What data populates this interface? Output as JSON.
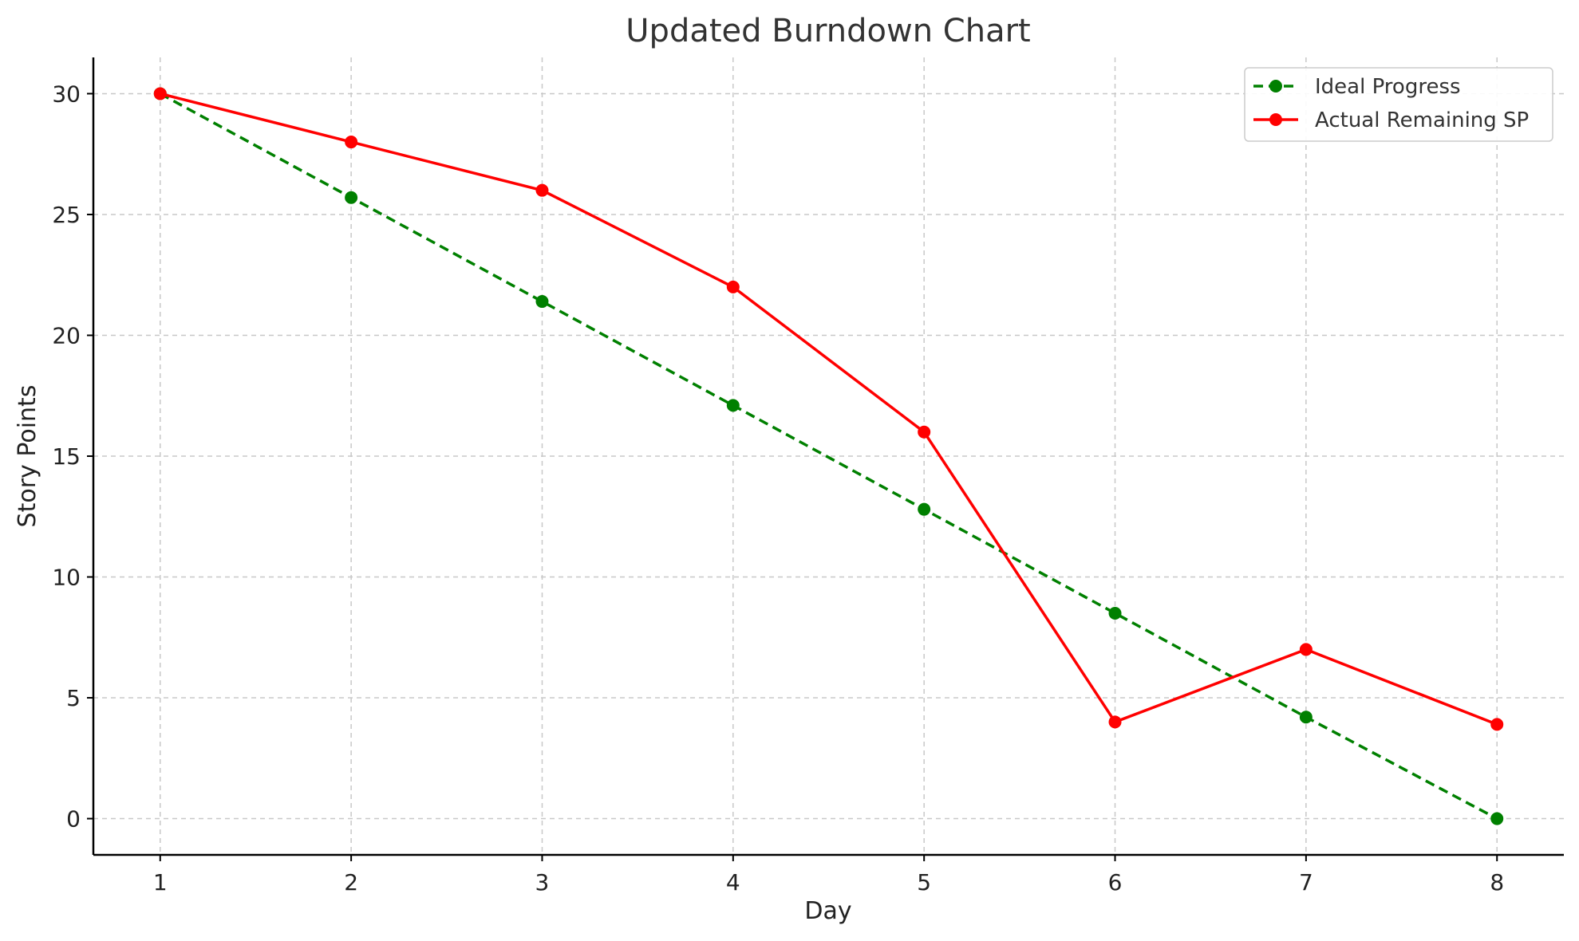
{
  "chart_data": {
    "type": "line",
    "title": "Updated Burndown Chart",
    "xlabel": "Day",
    "ylabel": "Story Points",
    "x": [
      1,
      2,
      3,
      4,
      5,
      6,
      7,
      8
    ],
    "xlim": [
      0.65,
      8.35
    ],
    "ylim": [
      -1.5,
      31.5
    ],
    "xticks": [
      1,
      2,
      3,
      4,
      5,
      6,
      7,
      8
    ],
    "yticks": [
      0,
      5,
      10,
      15,
      20,
      25,
      30
    ],
    "grid": true,
    "legend_position": "top-right",
    "series": [
      {
        "name": "Ideal Progress",
        "color": "#008000",
        "line_style": "dashed",
        "marker": "circle",
        "values": [
          30,
          25.7,
          21.4,
          17.1,
          12.8,
          8.5,
          4.2,
          0
        ]
      },
      {
        "name": "Actual Remaining SP",
        "color": "#ff0000",
        "line_style": "solid",
        "marker": "circle",
        "values": [
          30,
          28,
          26,
          22,
          16,
          4,
          7,
          3.9
        ]
      }
    ]
  }
}
